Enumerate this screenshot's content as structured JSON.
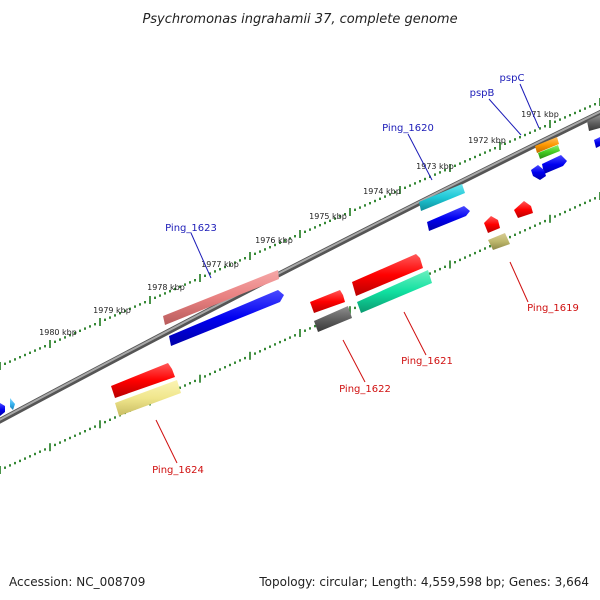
{
  "title": "Psychromonas ingrahamii 37, complete genome",
  "accession": "Accession: NC_008709",
  "summary": "Topology: circular; Length: 4,559,598 bp; Genes: 3,664",
  "colors": {
    "backbone": "#808080",
    "tick": "#1e7a1e",
    "label_forward": "#1c1cb8",
    "label_reverse": "#d01010"
  },
  "scale_labels": [
    "1971 kbp",
    "1972 kbp",
    "1973 kbp",
    "1974 kbp",
    "1975 kbp",
    "1976 kbp",
    "1977 kbp",
    "1978 kbp",
    "1979 kbp",
    "1980 kbp"
  ],
  "genes": [
    {
      "label": "pspC",
      "strand": "forward"
    },
    {
      "label": "pspB",
      "strand": "forward"
    },
    {
      "label": "Ping_1620",
      "strand": "forward"
    },
    {
      "label": "Ping_1623",
      "strand": "forward"
    },
    {
      "label": "Ping_1619",
      "strand": "reverse"
    },
    {
      "label": "Ping_1621",
      "strand": "reverse"
    },
    {
      "label": "Ping_1622",
      "strand": "reverse"
    },
    {
      "label": "Ping_1624",
      "strand": "reverse"
    }
  ]
}
